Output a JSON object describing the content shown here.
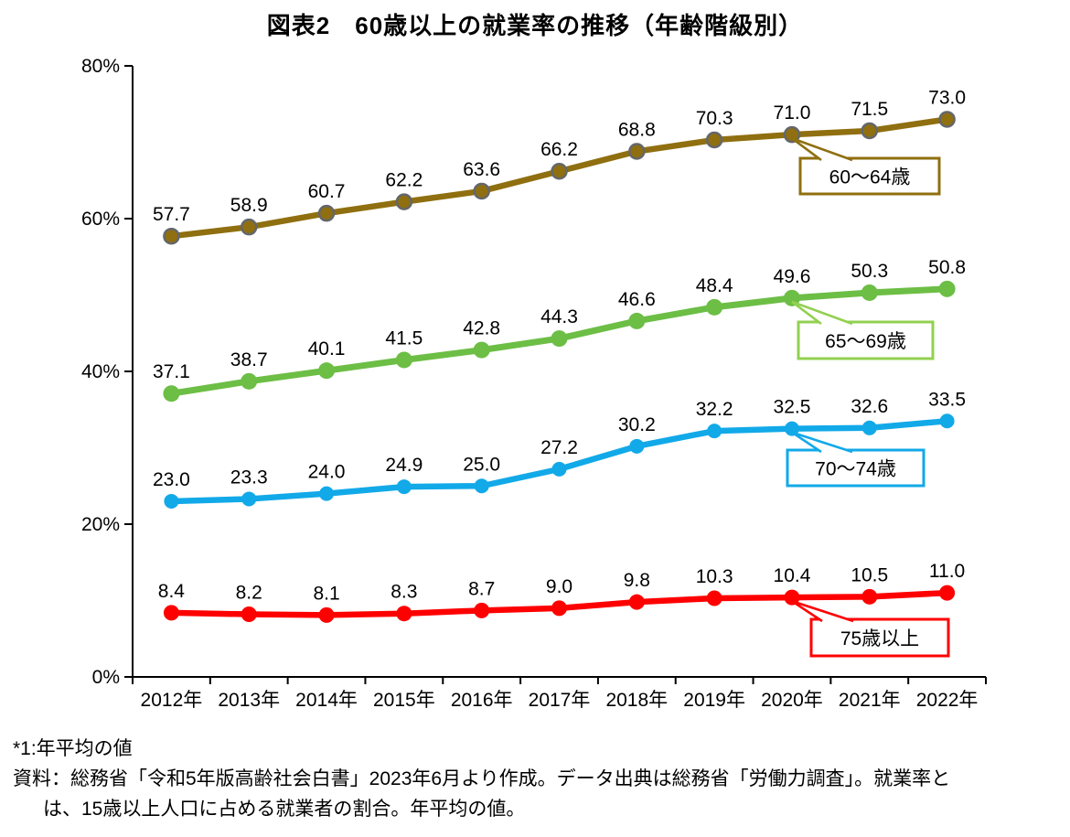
{
  "title": "図表2　60歳以上の就業率の推移（年齢階級別）",
  "chart_data": {
    "type": "line",
    "title": "図表2　60歳以上の就業率の推移（年齢階級別）",
    "x": [
      "2012年",
      "2013年",
      "2014年",
      "2015年",
      "2016年",
      "2017年",
      "2018年",
      "2019年",
      "2020年",
      "2021年",
      "2022年"
    ],
    "series": [
      {
        "name": "60～64歳",
        "values": [
          57.7,
          58.9,
          60.7,
          62.2,
          63.6,
          66.2,
          68.8,
          70.3,
          71.0,
          71.5,
          73.0
        ],
        "color": "#8F6F0F",
        "marker_stroke": "#64676B",
        "callout_border": "#8F6F0F"
      },
      {
        "name": "65～69歳",
        "values": [
          37.1,
          38.7,
          40.1,
          41.5,
          42.8,
          44.3,
          46.6,
          48.4,
          49.6,
          50.3,
          50.8
        ],
        "color": "#6CBE45",
        "marker_stroke": "",
        "callout_border": "#92D050"
      },
      {
        "name": "70～74歳",
        "values": [
          23.0,
          23.3,
          24.0,
          24.9,
          25.0,
          27.2,
          30.2,
          32.2,
          32.5,
          32.6,
          33.5
        ],
        "color": "#12A9E8",
        "marker_stroke": "",
        "callout_border": "#12A9E8"
      },
      {
        "name": "75歳以上",
        "values": [
          8.4,
          8.2,
          8.1,
          8.3,
          8.7,
          9.0,
          9.8,
          10.3,
          10.4,
          10.5,
          11.0
        ],
        "color": "#FF0000",
        "marker_stroke": "",
        "callout_border": "#FF0000"
      }
    ],
    "callout_anchor_index": 8,
    "yticks": [
      {
        "value": 0,
        "label": "0%"
      },
      {
        "value": 20,
        "label": "20%"
      },
      {
        "value": 40,
        "label": "40%"
      },
      {
        "value": 60,
        "label": "60%"
      },
      {
        "value": 80,
        "label": "80%"
      }
    ],
    "ylim": [
      0,
      80
    ],
    "grid": false,
    "data_labels": true,
    "axis_color": "#000000",
    "label_color": "#000000",
    "legend_position": "callout-boxes-on-plot"
  },
  "footnotes": {
    "note1": "*1:年平均の値",
    "source_line1": "資料：総務省「令和5年版高齢社会白書」2023年6月より作成。データ出典は総務省「労働力調査」。就業率と",
    "source_line2": "は、15歳以上人口に占める就業者の割合。年平均の値。"
  }
}
